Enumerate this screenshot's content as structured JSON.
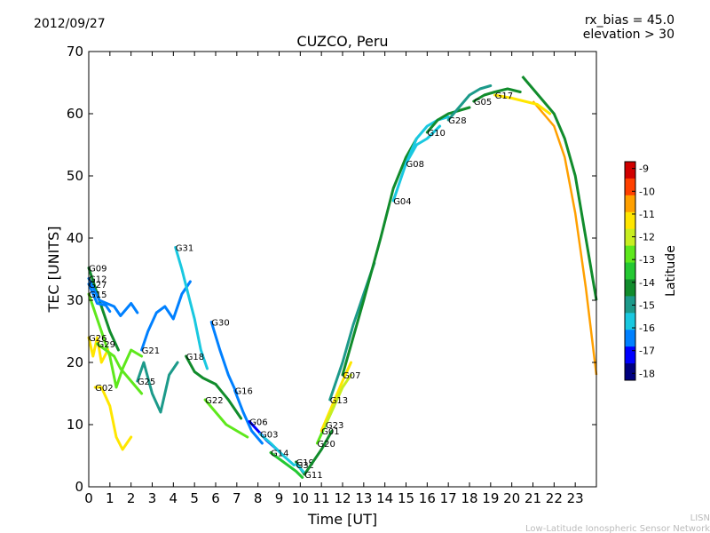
{
  "header": {
    "date": "2012/09/27",
    "params_line1": "rx_bias = 45.0",
    "params_line2": "elevation > 30"
  },
  "footer": {
    "brand": "LISN",
    "network": "Low-Latitude Ionospheric Sensor Network"
  },
  "colors": {
    "cmap": [
      "#00007f",
      "#0000ff",
      "#0080ff",
      "#19c8e0",
      "#1c9a8a",
      "#118c2c",
      "#24c832",
      "#5ee81c",
      "#c8ee20",
      "#ffe600",
      "#ffa000",
      "#ff4000",
      "#d00000"
    ]
  },
  "colorbar": {
    "label": "Latitude",
    "ticks": [
      "-9",
      "-10",
      "-11",
      "-12",
      "-13",
      "-14",
      "-15",
      "-16",
      "-17",
      "-18"
    ],
    "range": [
      -18.3,
      -8.7
    ]
  },
  "chart_data": {
    "type": "scatter",
    "title": "CUZCO, Peru",
    "xlabel": "Time [UT]",
    "ylabel": "TEC [UNITS]",
    "xlim": [
      0,
      24
    ],
    "ylim": [
      0,
      70
    ],
    "xticks": [
      "0",
      "1",
      "2",
      "3",
      "4",
      "5",
      "6",
      "7",
      "8",
      "9",
      "10",
      "11",
      "12",
      "13",
      "14",
      "15",
      "16",
      "17",
      "18",
      "19",
      "20",
      "21",
      "22",
      "23"
    ],
    "yticks": [
      "0",
      "10",
      "20",
      "30",
      "40",
      "50",
      "60",
      "70"
    ],
    "series": [
      {
        "name": "G09",
        "lat": -14.5,
        "points": [
          [
            0,
            35.2
          ],
          [
            0.5,
            30
          ],
          [
            1,
            25
          ],
          [
            1.4,
            22
          ]
        ]
      },
      {
        "name": "G12",
        "lat": -16.5,
        "points": [
          [
            0,
            33.5
          ],
          [
            0.5,
            30
          ],
          [
            1.2,
            29
          ],
          [
            1.5,
            27.5
          ],
          [
            2,
            29.5
          ],
          [
            2.3,
            28
          ]
        ]
      },
      {
        "name": "G27",
        "lat": -17,
        "points": [
          [
            0,
            32.6
          ],
          [
            0.4,
            29.5
          ],
          [
            0.8,
            29.2
          ],
          [
            1,
            28.2
          ]
        ]
      },
      {
        "name": "G15",
        "lat": -13,
        "points": [
          [
            0,
            31
          ],
          [
            0.5,
            26
          ],
          [
            1,
            21
          ],
          [
            1.3,
            16
          ],
          [
            1.6,
            19
          ],
          [
            2,
            22
          ],
          [
            2.5,
            21
          ]
        ]
      },
      {
        "name": "G26",
        "lat": -11,
        "points": [
          [
            0,
            24
          ],
          [
            0.2,
            21
          ],
          [
            0.4,
            24
          ],
          [
            0.6,
            20
          ],
          [
            0.9,
            22
          ]
        ]
      },
      {
        "name": "G29",
        "lat": -12.5,
        "points": [
          [
            0.4,
            23
          ],
          [
            0.8,
            22
          ],
          [
            1.2,
            21
          ],
          [
            1.5,
            19
          ],
          [
            2,
            17
          ],
          [
            2.5,
            15
          ]
        ]
      },
      {
        "name": "G02",
        "lat": -11.5,
        "points": [
          [
            0.3,
            16
          ],
          [
            0.6,
            16
          ],
          [
            1,
            13
          ],
          [
            1.3,
            8
          ],
          [
            1.6,
            6
          ],
          [
            2,
            8
          ]
        ]
      },
      {
        "name": "G21",
        "lat": -16.5,
        "points": [
          [
            2.5,
            22
          ],
          [
            2.8,
            25
          ],
          [
            3.2,
            28
          ],
          [
            3.6,
            29
          ],
          [
            4,
            27
          ],
          [
            4.4,
            31
          ],
          [
            4.8,
            33
          ]
        ]
      },
      {
        "name": "G25",
        "lat": -15.5,
        "points": [
          [
            2.3,
            17
          ],
          [
            2.6,
            20
          ],
          [
            3,
            15
          ],
          [
            3.4,
            12
          ],
          [
            3.8,
            18
          ],
          [
            4.2,
            20
          ]
        ]
      },
      {
        "name": "G31",
        "lat": -16,
        "points": [
          [
            4.1,
            38.5
          ],
          [
            4.4,
            35
          ],
          [
            4.7,
            31
          ],
          [
            5,
            27
          ],
          [
            5.3,
            22
          ],
          [
            5.6,
            19
          ]
        ]
      },
      {
        "name": "G18",
        "lat": -14,
        "points": [
          [
            4.6,
            21
          ],
          [
            5,
            18.5
          ],
          [
            5.4,
            17.5
          ],
          [
            6,
            16.5
          ],
          [
            6.6,
            14
          ],
          [
            7.2,
            11
          ]
        ]
      },
      {
        "name": "G30",
        "lat": -17,
        "points": [
          [
            5.8,
            26.5
          ],
          [
            6.2,
            22
          ],
          [
            6.6,
            18
          ],
          [
            7,
            15
          ]
        ]
      },
      {
        "name": "G22",
        "lat": -13,
        "points": [
          [
            5.5,
            14
          ],
          [
            6,
            12
          ],
          [
            6.5,
            10
          ],
          [
            7,
            9
          ],
          [
            7.5,
            8
          ]
        ]
      },
      {
        "name": "G16",
        "lat": -16.5,
        "points": [
          [
            6.9,
            15.5
          ],
          [
            7.3,
            12
          ],
          [
            7.7,
            9
          ],
          [
            8.2,
            7
          ]
        ]
      },
      {
        "name": "G06",
        "lat": -17.5,
        "points": [
          [
            7.6,
            10.5
          ],
          [
            8,
            9
          ],
          [
            8.4,
            7.5
          ],
          [
            8.9,
            6
          ]
        ]
      },
      {
        "name": "G03",
        "lat": -16,
        "points": [
          [
            8.1,
            8.5
          ],
          [
            8.6,
            7
          ],
          [
            9.2,
            5
          ],
          [
            9.7,
            3.5
          ]
        ]
      },
      {
        "name": "G14",
        "lat": -13.5,
        "points": [
          [
            8.6,
            5.5
          ],
          [
            9.2,
            4
          ],
          [
            9.8,
            2.5
          ],
          [
            10.1,
            1.5
          ]
        ]
      },
      {
        "name": "G19",
        "lat": -14,
        "points": [
          [
            9.8,
            4
          ],
          [
            10,
            3
          ],
          [
            10.2,
            2
          ]
        ]
      },
      {
        "name": "G32",
        "lat": -16,
        "points": [
          [
            9.8,
            3.6
          ],
          [
            10,
            3
          ],
          [
            10.2,
            2.2
          ]
        ]
      },
      {
        "name": "G11",
        "lat": -14,
        "points": [
          [
            10.2,
            2
          ],
          [
            10.6,
            4
          ],
          [
            11,
            6
          ],
          [
            11.5,
            9
          ]
        ]
      },
      {
        "name": "G20",
        "lat": -13,
        "points": [
          [
            10.8,
            7
          ],
          [
            11.2,
            10
          ],
          [
            11.6,
            13
          ]
        ]
      },
      {
        "name": "G01",
        "lat": -11.5,
        "points": [
          [
            11,
            9
          ],
          [
            11.5,
            13
          ],
          [
            12,
            17
          ],
          [
            12.4,
            20
          ]
        ]
      },
      {
        "name": "G23",
        "lat": -12,
        "points": [
          [
            11.2,
            10
          ],
          [
            11.6,
            13
          ],
          [
            12,
            16
          ],
          [
            12.4,
            18
          ]
        ]
      },
      {
        "name": "G13",
        "lat": -15,
        "points": [
          [
            11.4,
            14
          ],
          [
            12,
            20
          ],
          [
            12.5,
            26
          ],
          [
            13,
            31
          ],
          [
            13.5,
            36
          ]
        ]
      },
      {
        "name": "G07",
        "lat": -14,
        "points": [
          [
            12,
            18
          ],
          [
            13,
            30
          ],
          [
            13.8,
            40
          ],
          [
            14.4,
            48
          ],
          [
            15,
            53
          ],
          [
            15.5,
            56
          ]
        ]
      },
      {
        "name": "G04",
        "lat": -16,
        "points": [
          [
            14.4,
            46
          ],
          [
            15,
            52
          ],
          [
            15.5,
            55
          ],
          [
            16,
            56
          ],
          [
            16.6,
            58
          ]
        ]
      },
      {
        "name": "G08",
        "lat": -16,
        "points": [
          [
            15,
            52
          ],
          [
            15.5,
            56
          ],
          [
            16,
            58
          ],
          [
            16.5,
            59
          ],
          [
            17,
            59.5
          ]
        ]
      },
      {
        "name": "G10",
        "lat": -14.5,
        "points": [
          [
            16,
            57
          ],
          [
            16.5,
            59
          ],
          [
            17,
            60
          ],
          [
            17.5,
            60.5
          ],
          [
            18,
            61
          ]
        ]
      },
      {
        "name": "G28",
        "lat": -15.5,
        "points": [
          [
            17,
            59
          ],
          [
            17.5,
            61
          ],
          [
            18,
            63
          ],
          [
            18.5,
            64
          ],
          [
            19,
            64.5
          ]
        ]
      },
      {
        "name": "G05",
        "lat": -14,
        "points": [
          [
            18.2,
            62
          ],
          [
            18.7,
            63
          ],
          [
            19.2,
            63.5
          ],
          [
            19.8,
            64
          ],
          [
            20.4,
            63.5
          ]
        ]
      },
      {
        "name": "G17",
        "lat": -11.5,
        "points": [
          [
            19.2,
            63
          ],
          [
            20,
            62.5
          ],
          [
            20.6,
            62
          ],
          [
            21.2,
            61.5
          ],
          [
            21.8,
            60
          ]
        ]
      }
    ],
    "envelope": [
      [
        20.5,
        66
      ],
      [
        21,
        64
      ],
      [
        21.5,
        62
      ],
      [
        22,
        60
      ],
      [
        22.5,
        56
      ],
      [
        23,
        50
      ],
      [
        23.5,
        40
      ],
      [
        24,
        30
      ]
    ],
    "envelope_low": [
      [
        21,
        62
      ],
      [
        21.5,
        60
      ],
      [
        22,
        58
      ],
      [
        22.5,
        53
      ],
      [
        23,
        44
      ],
      [
        23.5,
        32
      ],
      [
        24,
        18
      ]
    ]
  }
}
